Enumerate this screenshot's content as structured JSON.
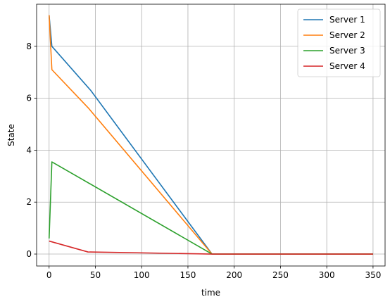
{
  "chart_data": {
    "type": "line",
    "xlabel": "time",
    "ylabel": "State",
    "xlim": [
      -13.5,
      363
    ],
    "ylim": [
      -0.46,
      9.62
    ],
    "xticks": [
      0,
      50,
      100,
      150,
      200,
      250,
      300,
      350
    ],
    "yticks": [
      0,
      2,
      4,
      6,
      8
    ],
    "grid": true,
    "legend_position": "top-right",
    "series": [
      {
        "name": "Server 1",
        "color": "#1f77b4",
        "x": [
          0,
          3,
          45,
          176,
          350
        ],
        "y": [
          9.2,
          8.0,
          6.3,
          0.0,
          0.0
        ]
      },
      {
        "name": "Server 2",
        "color": "#ff7f0e",
        "x": [
          0,
          3,
          43,
          176,
          350
        ],
        "y": [
          9.2,
          7.1,
          5.6,
          0.0,
          0.0
        ]
      },
      {
        "name": "Server 3",
        "color": "#2ca02c",
        "x": [
          0,
          3,
          176,
          350
        ],
        "y": [
          0.6,
          3.55,
          0.0,
          0.0
        ]
      },
      {
        "name": "Server 4",
        "color": "#d62728",
        "x": [
          0,
          42,
          176,
          350
        ],
        "y": [
          0.5,
          0.08,
          0.0,
          0.0
        ]
      }
    ]
  }
}
